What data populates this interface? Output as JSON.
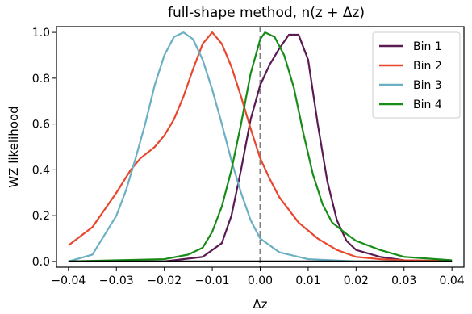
{
  "chart_data": {
    "type": "line",
    "title": "full-shape method, n(z + Δz)",
    "xlabel": "Δz",
    "ylabel": "WZ likelihood",
    "xlim": [
      -0.0425,
      0.0425
    ],
    "ylim": [
      -0.025,
      1.025
    ],
    "xticks": [
      -0.04,
      -0.03,
      -0.02,
      -0.01,
      0.0,
      0.01,
      0.02,
      0.03,
      0.04
    ],
    "xtick_labels": [
      "−0.04",
      "−0.03",
      "−0.02",
      "−0.01",
      "0.00",
      "0.01",
      "0.02",
      "0.03",
      "0.04"
    ],
    "yticks": [
      0.0,
      0.2,
      0.4,
      0.6,
      0.8,
      1.0
    ],
    "ytick_labels": [
      "0.0",
      "0.2",
      "0.4",
      "0.6",
      "0.8",
      "1.0"
    ],
    "grid": false,
    "legend_position": "top-right",
    "reference_line": {
      "x": 0.0,
      "style": "dashed",
      "color": "#808080"
    },
    "series": [
      {
        "name": "Bin 1",
        "color": "#5a1a52",
        "x": [
          -0.04,
          -0.02,
          -0.012,
          -0.008,
          -0.006,
          -0.004,
          -0.002,
          0.0,
          0.002,
          0.004,
          0.006,
          0.008,
          0.01,
          0.012,
          0.014,
          0.016,
          0.018,
          0.02,
          0.025,
          0.03,
          0.04
        ],
        "y": [
          0.0,
          0.0,
          0.02,
          0.08,
          0.2,
          0.4,
          0.62,
          0.77,
          0.86,
          0.93,
          0.99,
          0.99,
          0.88,
          0.6,
          0.35,
          0.18,
          0.09,
          0.05,
          0.02,
          0.005,
          0.0
        ]
      },
      {
        "name": "Bin 2",
        "color": "#e8472e",
        "x": [
          -0.04,
          -0.035,
          -0.03,
          -0.027,
          -0.025,
          -0.022,
          -0.02,
          -0.018,
          -0.016,
          -0.014,
          -0.012,
          -0.01,
          -0.008,
          -0.006,
          -0.004,
          -0.002,
          0.0,
          0.002,
          0.004,
          0.008,
          0.012,
          0.016,
          0.02,
          0.025,
          0.03,
          0.04
        ],
        "y": [
          0.07,
          0.15,
          0.3,
          0.4,
          0.45,
          0.5,
          0.55,
          0.62,
          0.72,
          0.84,
          0.95,
          1.0,
          0.95,
          0.85,
          0.72,
          0.58,
          0.45,
          0.36,
          0.28,
          0.17,
          0.1,
          0.05,
          0.02,
          0.01,
          0.005,
          0.002
        ]
      },
      {
        "name": "Bin 3",
        "color": "#6aafc2",
        "x": [
          -0.04,
          -0.035,
          -0.03,
          -0.028,
          -0.026,
          -0.024,
          -0.022,
          -0.02,
          -0.018,
          -0.016,
          -0.014,
          -0.012,
          -0.01,
          -0.008,
          -0.006,
          -0.004,
          -0.002,
          0.0,
          0.004,
          0.01,
          0.02,
          0.03
        ],
        "y": [
          0.0,
          0.03,
          0.2,
          0.31,
          0.45,
          0.6,
          0.77,
          0.9,
          0.98,
          1.0,
          0.97,
          0.88,
          0.75,
          0.6,
          0.44,
          0.3,
          0.18,
          0.1,
          0.04,
          0.01,
          0.0,
          0.0
        ]
      },
      {
        "name": "Bin 4",
        "color": "#178c17",
        "x": [
          -0.04,
          -0.02,
          -0.015,
          -0.012,
          -0.01,
          -0.008,
          -0.006,
          -0.004,
          -0.002,
          0.0,
          0.001,
          0.003,
          0.005,
          0.007,
          0.009,
          0.011,
          0.013,
          0.015,
          0.018,
          0.02,
          0.025,
          0.03,
          0.04
        ],
        "y": [
          0.0,
          0.01,
          0.03,
          0.06,
          0.13,
          0.24,
          0.4,
          0.6,
          0.82,
          0.97,
          1.0,
          0.98,
          0.9,
          0.76,
          0.56,
          0.38,
          0.25,
          0.17,
          0.12,
          0.09,
          0.05,
          0.02,
          0.005
        ]
      },
      {
        "name": "",
        "color": "#000000",
        "x": [
          -0.04,
          0.04
        ],
        "y": [
          0.0,
          0.0
        ]
      }
    ]
  }
}
